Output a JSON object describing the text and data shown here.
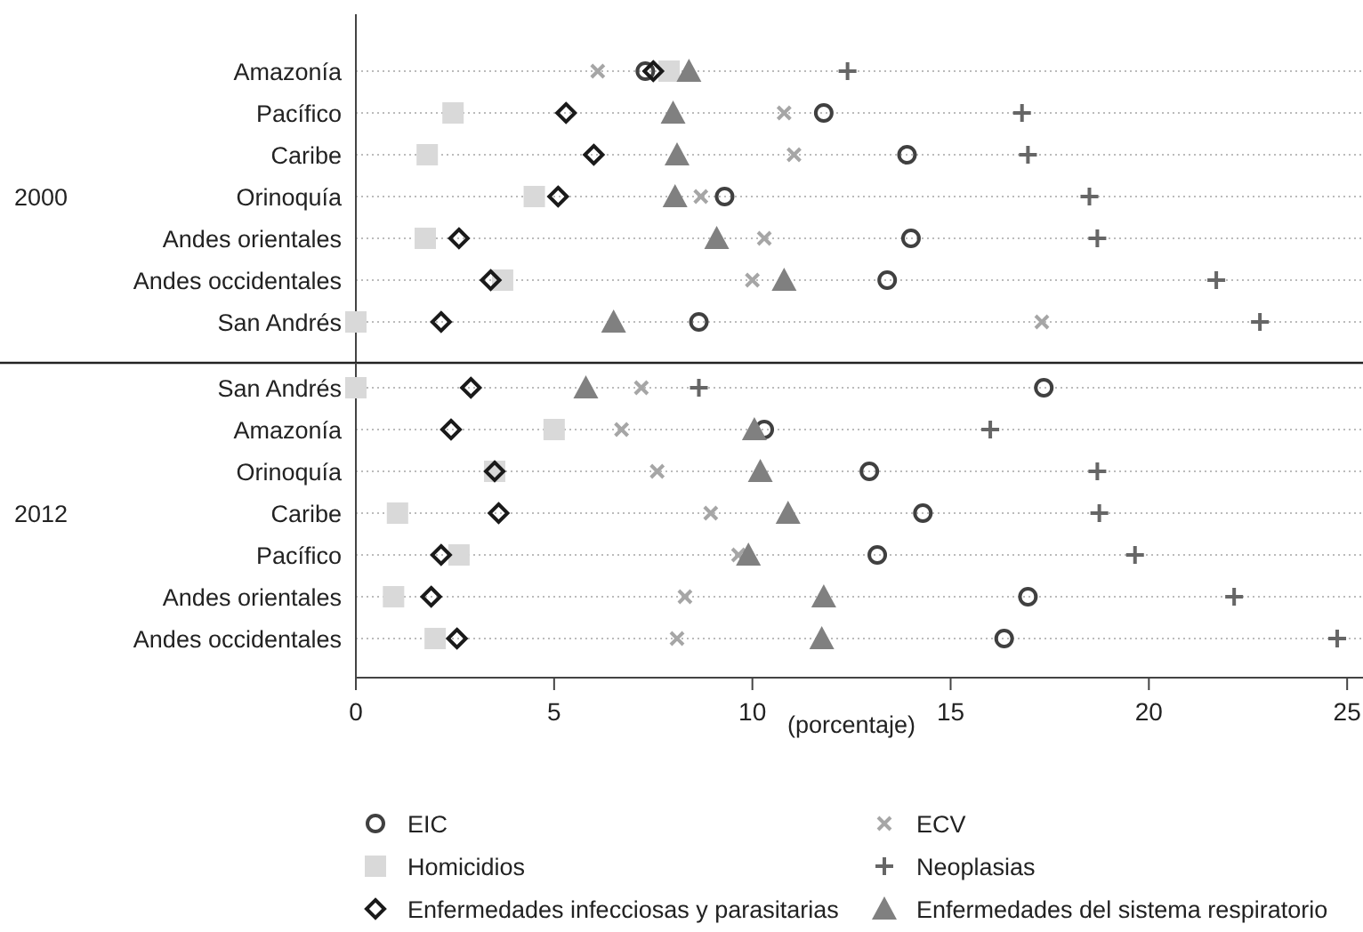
{
  "chart_data": [
    {
      "type": "scatter",
      "orientation": "horizontal",
      "ylabel": "2000",
      "categories": [
        "Amazonía",
        "Pacífico",
        "Caribe",
        "Orinoquía",
        "Andes orientales",
        "Andes occidentales",
        "San Andrés"
      ],
      "xlim": [
        0,
        25.4
      ],
      "xticks": [
        0,
        5,
        10,
        15,
        20,
        25
      ],
      "tick_labels": "y",
      "grid": "y",
      "series": [
        {
          "color": "#404040",
          "marker": "circle",
          "values": [
            7.3,
            11.8,
            13.9,
            9.3,
            14.0,
            13.4,
            8.65
          ]
        },
        {
          "color": "#a6a6a6",
          "marker": "cross",
          "values": [
            6.1,
            10.8,
            11.05,
            8.7,
            10.3,
            10.0,
            17.3
          ]
        },
        {
          "color": "#d9d9d9",
          "marker": "square",
          "values": [
            7.9,
            2.45,
            1.8,
            4.5,
            1.75,
            3.7,
            0
          ]
        },
        {
          "color": "#666666",
          "marker": "plus",
          "values": [
            12.4,
            16.8,
            16.95,
            18.5,
            18.7,
            21.7,
            22.8
          ]
        },
        {
          "color": "#1a1a1a",
          "marker": "diamond",
          "values": [
            7.5,
            5.3,
            6.0,
            5.1,
            2.6,
            3.4,
            2.15
          ]
        },
        {
          "color": "#808080",
          "marker": "triangle",
          "values": [
            8.4,
            8.0,
            8.1,
            8.05,
            9.1,
            10.8,
            6.5
          ]
        }
      ]
    },
    {
      "type": "scatter",
      "orientation": "horizontal",
      "ylabel": "2012",
      "xlabel": "(porcentaje)",
      "categories": [
        "San Andrés",
        "Amazonía",
        "Orinoquía",
        "Caribe",
        "Pacífico",
        "Andes orientales",
        "Andes occidentales"
      ],
      "xlim": [
        0,
        25.4
      ],
      "xticks": [
        0,
        5,
        10,
        15,
        20,
        25
      ],
      "grid": "y",
      "legend": "bottom",
      "series": [
        {
          "name": "EIC",
          "color": "#404040",
          "marker": "circle",
          "values": [
            17.35,
            10.3,
            12.95,
            14.3,
            13.15,
            16.95,
            16.35
          ]
        },
        {
          "name": "ECV",
          "color": "#a6a6a6",
          "marker": "cross",
          "values": [
            7.2,
            6.7,
            7.6,
            8.95,
            9.65,
            8.3,
            8.1
          ]
        },
        {
          "name": "Homicidios",
          "color": "#d9d9d9",
          "marker": "square",
          "values": [
            0,
            5.0,
            3.5,
            1.05,
            2.6,
            0.95,
            2.0
          ]
        },
        {
          "name": "Neoplasias",
          "color": "#666666",
          "marker": "plus",
          "values": [
            8.65,
            16.0,
            18.7,
            18.75,
            19.65,
            22.15,
            24.75
          ]
        },
        {
          "name": "Enfermedades infecciosas y parasitarias",
          "color": "#1a1a1a",
          "marker": "diamond",
          "values": [
            2.9,
            2.4,
            3.5,
            3.6,
            2.15,
            1.9,
            2.55
          ]
        },
        {
          "name": "Enfermedades del sistema respiratorio",
          "color": "#808080",
          "marker": "triangle",
          "values": [
            5.8,
            10.05,
            10.2,
            10.9,
            9.9,
            11.8,
            11.75
          ]
        }
      ]
    }
  ]
}
